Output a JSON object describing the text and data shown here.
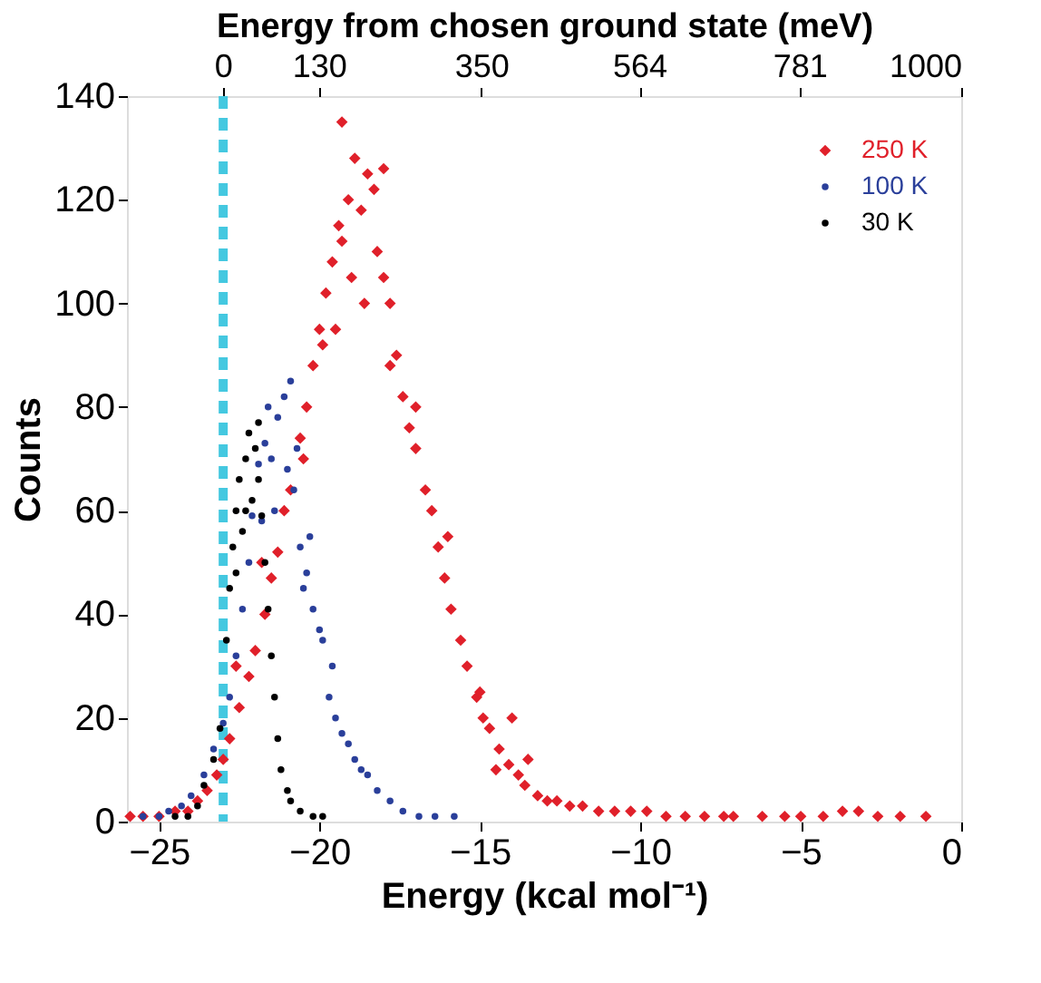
{
  "chart_data": {
    "type": "scatter",
    "xlabel": "Energy (kcal mol⁻¹)",
    "ylabel": "Counts",
    "x2label": "Energy from chosen ground state (meV)",
    "xlim": [
      -26,
      0
    ],
    "xticks": [
      -25,
      -20,
      -15,
      -10,
      -5,
      0
    ],
    "ylim": [
      0,
      140
    ],
    "yticks": [
      0,
      20,
      40,
      60,
      80,
      100,
      120,
      140
    ],
    "x2lim": [
      -130,
      1000
    ],
    "x2ticks": [
      0,
      130,
      350,
      564,
      781,
      1000
    ],
    "grid": false,
    "legend": "top right",
    "ref_lines": [
      {
        "axis": "x",
        "value": -23,
        "color": "#44c8e0",
        "line_style": "dashed"
      }
    ],
    "series": [
      {
        "name": "250 K",
        "color": "#e0202a",
        "marker": "diamond",
        "x": [
          -25.9,
          -25.5,
          -25.0,
          -24.5,
          -24.1,
          -23.8,
          -23.5,
          -23.2,
          -23.0,
          -22.8,
          -22.5,
          -22.2,
          -22.0,
          -21.7,
          -21.5,
          -21.3,
          -21.1,
          -20.9,
          -20.6,
          -20.4,
          -20.2,
          -20.0,
          -19.8,
          -19.6,
          -19.4,
          -19.3,
          -19.1,
          -18.9,
          -18.7,
          -18.5,
          -18.3,
          -18.2,
          -18.0,
          -17.8,
          -17.6,
          -17.4,
          -17.2,
          -17.0,
          -16.7,
          -16.5,
          -16.3,
          -16.1,
          -15.9,
          -15.6,
          -15.4,
          -15.1,
          -14.9,
          -14.7,
          -14.4,
          -14.1,
          -13.8,
          -13.6,
          -13.2,
          -12.9,
          -12.6,
          -12.2,
          -11.8,
          -11.3,
          -10.8,
          -10.3,
          -9.8,
          -9.2,
          -8.6,
          -8.0,
          -7.4,
          -7.1,
          -6.2,
          -5.5,
          -5.0,
          -4.3,
          -3.7,
          -3.2,
          -2.6,
          -1.9,
          -1.1,
          -19.5,
          -19.0,
          -18.6,
          -19.3,
          -18.0,
          -17.8,
          -20.5,
          -19.9,
          -17.0,
          -16.0,
          -15.0,
          -14.5,
          -14.0,
          -13.5,
          -21.8,
          -22.6
        ],
        "values": [
          1,
          1,
          1,
          2,
          2,
          4,
          6,
          9,
          12,
          16,
          22,
          28,
          33,
          40,
          47,
          52,
          60,
          64,
          74,
          80,
          88,
          95,
          102,
          108,
          115,
          112,
          120,
          128,
          118,
          125,
          122,
          110,
          105,
          100,
          90,
          82,
          76,
          72,
          64,
          60,
          53,
          47,
          41,
          35,
          30,
          24,
          20,
          18,
          14,
          11,
          9,
          7,
          5,
          4,
          4,
          3,
          3,
          2,
          2,
          2,
          2,
          1,
          1,
          1,
          1,
          1,
          1,
          1,
          1,
          1,
          2,
          2,
          1,
          1,
          1,
          95,
          105,
          100,
          135,
          126,
          88,
          70,
          92,
          80,
          55,
          25,
          10,
          20,
          12,
          50,
          30
        ]
      },
      {
        "name": "100 K",
        "color": "#2a3f9a",
        "marker": "circle",
        "x": [
          -25.5,
          -25.0,
          -24.7,
          -24.3,
          -24.0,
          -23.6,
          -23.3,
          -23.0,
          -22.8,
          -22.6,
          -22.4,
          -22.2,
          -22.1,
          -21.9,
          -21.7,
          -21.5,
          -21.3,
          -21.1,
          -20.9,
          -20.8,
          -20.6,
          -20.4,
          -20.2,
          -20.0,
          -19.9,
          -19.7,
          -19.5,
          -19.3,
          -19.1,
          -18.9,
          -18.7,
          -18.5,
          -18.2,
          -17.8,
          -17.4,
          -16.9,
          -16.4,
          -15.8,
          -21.8,
          -21.4,
          -21.0,
          -20.7,
          -20.3,
          -21.6,
          -20.5,
          -19.6
        ],
        "values": [
          1,
          1,
          2,
          3,
          5,
          9,
          14,
          19,
          24,
          32,
          41,
          50,
          59,
          69,
          73,
          70,
          78,
          82,
          85,
          64,
          53,
          48,
          41,
          37,
          35,
          24,
          20,
          17,
          15,
          12,
          10,
          9,
          6,
          4,
          2,
          1,
          1,
          1,
          58,
          60,
          68,
          72,
          55,
          80,
          45,
          30
        ]
      },
      {
        "name": "30 K",
        "color": "#000000",
        "marker": "circle",
        "x": [
          -24.5,
          -24.1,
          -23.8,
          -23.6,
          -23.3,
          -23.1,
          -22.9,
          -22.8,
          -22.7,
          -22.6,
          -22.5,
          -22.3,
          -22.2,
          -22.0,
          -21.9,
          -21.8,
          -21.7,
          -21.6,
          -21.5,
          -21.4,
          -21.3,
          -21.2,
          -21.0,
          -20.9,
          -20.6,
          -20.2,
          -19.9,
          -22.6,
          -22.4,
          -22.1,
          -21.9,
          -22.3
        ],
        "values": [
          1,
          1,
          3,
          7,
          12,
          18,
          35,
          45,
          53,
          60,
          66,
          70,
          75,
          72,
          77,
          59,
          50,
          41,
          32,
          24,
          16,
          10,
          6,
          4,
          2,
          1,
          1,
          48,
          56,
          62,
          66,
          60
        ]
      }
    ]
  }
}
